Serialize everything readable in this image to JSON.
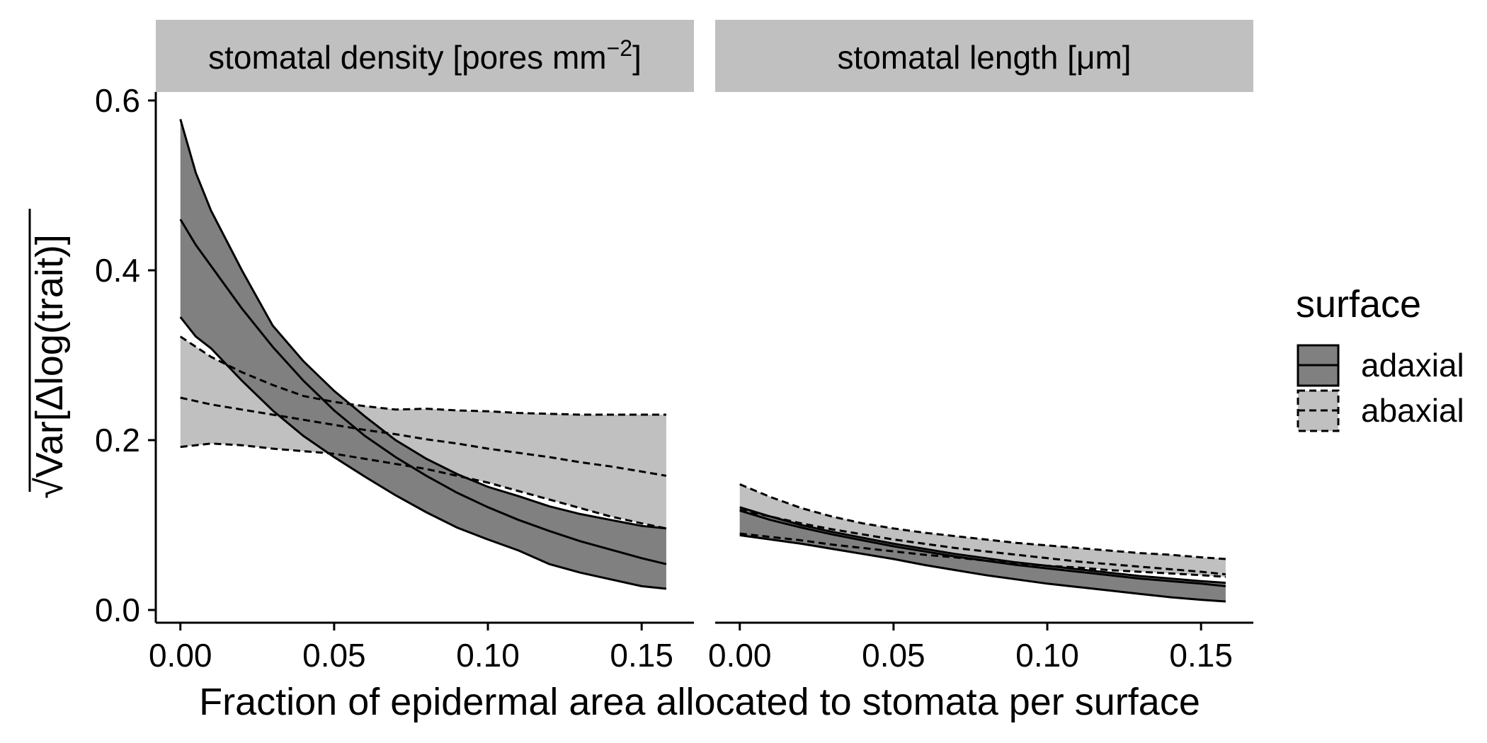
{
  "chart_data": {
    "type": "area",
    "xlabel": "Fraction of epidermal area allocated to stomata per surface",
    "ylabel": "Var[Δlog(trait)]",
    "ylabel_root": "√",
    "xlim": [
      -0.008,
      0.167
    ],
    "ylim": [
      -0.015,
      0.61
    ],
    "x_ticks": [
      0.0,
      0.05,
      0.1,
      0.15
    ],
    "x_tick_labels": [
      "0.00",
      "0.05",
      "0.10",
      "0.15"
    ],
    "y_ticks": [
      0.0,
      0.2,
      0.4,
      0.6
    ],
    "y_tick_labels": [
      "0.0",
      "0.2",
      "0.4",
      "0.6"
    ],
    "grid": false,
    "legend": {
      "title": "surface",
      "position": "right",
      "entries": [
        {
          "label": "adaxial",
          "linetype": "solid",
          "fill": "#808080"
        },
        {
          "label": "abaxial",
          "linetype": "dashed",
          "fill": "#c0c0c0"
        }
      ]
    },
    "strip_fill": "#c0c0c0",
    "series_colors": {
      "adaxial_fill": "#808080",
      "abaxial_fill": "#c0c0c0",
      "line": "#000000",
      "abaxial_band_edge": "#808080"
    },
    "panels": [
      {
        "title_main": "stomatal density [pores mm",
        "title_sup": "−2",
        "title_end": "]",
        "x": [
          0.0,
          0.005,
          0.01,
          0.02,
          0.03,
          0.04,
          0.05,
          0.06,
          0.07,
          0.08,
          0.09,
          0.1,
          0.11,
          0.12,
          0.13,
          0.14,
          0.15,
          0.158
        ],
        "series": [
          {
            "name": "adaxial",
            "linetype": "solid",
            "median": [
              0.46,
              0.43,
              0.405,
              0.355,
              0.31,
              0.27,
              0.235,
              0.205,
              0.18,
              0.158,
              0.138,
              0.121,
              0.106,
              0.093,
              0.081,
              0.071,
              0.061,
              0.054
            ],
            "lower": [
              0.345,
              0.322,
              0.308,
              0.27,
              0.235,
              0.205,
              0.18,
              0.157,
              0.135,
              0.115,
              0.097,
              0.083,
              0.07,
              0.054,
              0.044,
              0.036,
              0.028,
              0.025
            ],
            "upper": [
              0.578,
              0.515,
              0.47,
              0.4,
              0.335,
              0.293,
              0.258,
              0.228,
              0.2,
              0.178,
              0.16,
              0.145,
              0.134,
              0.122,
              0.113,
              0.106,
              0.099,
              0.096
            ]
          },
          {
            "name": "abaxial",
            "linetype": "dashed",
            "median": [
              0.25,
              0.246,
              0.242,
              0.236,
              0.23,
              0.224,
              0.218,
              0.212,
              0.207,
              0.201,
              0.196,
              0.19,
              0.185,
              0.18,
              0.174,
              0.169,
              0.163,
              0.158
            ],
            "lower": [
              0.192,
              0.194,
              0.196,
              0.194,
              0.19,
              0.187,
              0.184,
              0.178,
              0.172,
              0.166,
              0.158,
              0.15,
              0.14,
              0.13,
              0.12,
              0.11,
              0.102,
              0.096
            ],
            "upper": [
              0.322,
              0.31,
              0.298,
              0.28,
              0.265,
              0.252,
              0.245,
              0.24,
              0.236,
              0.237,
              0.235,
              0.234,
              0.232,
              0.231,
              0.23,
              0.23,
              0.23,
              0.23
            ]
          }
        ]
      },
      {
        "title_main": "stomatal length [μm]",
        "title_sup": "",
        "title_end": "",
        "x": [
          0.0,
          0.01,
          0.02,
          0.03,
          0.04,
          0.05,
          0.06,
          0.07,
          0.08,
          0.09,
          0.1,
          0.11,
          0.12,
          0.13,
          0.14,
          0.15,
          0.158
        ],
        "series": [
          {
            "name": "adaxial",
            "linetype": "solid",
            "median": [
              0.117,
              0.106,
              0.097,
              0.089,
              0.082,
              0.075,
              0.069,
              0.063,
              0.058,
              0.053,
              0.049,
              0.045,
              0.041,
              0.037,
              0.034,
              0.031,
              0.028
            ],
            "lower": [
              0.088,
              0.083,
              0.078,
              0.072,
              0.066,
              0.06,
              0.053,
              0.047,
              0.041,
              0.036,
              0.031,
              0.027,
              0.023,
              0.019,
              0.015,
              0.012,
              0.01
            ],
            "upper": [
              0.121,
              0.11,
              0.1,
              0.092,
              0.085,
              0.078,
              0.072,
              0.066,
              0.061,
              0.056,
              0.052,
              0.048,
              0.044,
              0.04,
              0.037,
              0.034,
              0.032
            ]
          },
          {
            "name": "abaxial",
            "linetype": "dashed",
            "median": [
              0.118,
              0.11,
              0.102,
              0.095,
              0.089,
              0.083,
              0.078,
              0.073,
              0.069,
              0.065,
              0.061,
              0.057,
              0.054,
              0.051,
              0.048,
              0.045,
              0.042
            ],
            "lower": [
              0.09,
              0.086,
              0.082,
              0.077,
              0.073,
              0.069,
              0.065,
              0.062,
              0.058,
              0.055,
              0.052,
              0.05,
              0.047,
              0.045,
              0.043,
              0.041,
              0.039
            ],
            "upper": [
              0.148,
              0.133,
              0.12,
              0.11,
              0.102,
              0.096,
              0.091,
              0.087,
              0.083,
              0.079,
              0.076,
              0.073,
              0.07,
              0.067,
              0.065,
              0.062,
              0.06
            ]
          }
        ]
      }
    ]
  }
}
